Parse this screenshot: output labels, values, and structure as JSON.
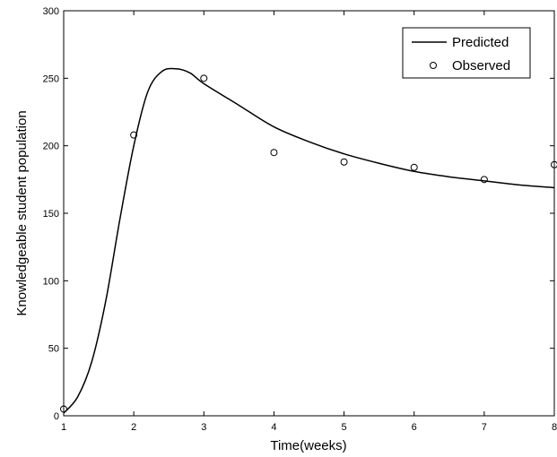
{
  "chart_data": {
    "type": "line",
    "title": "",
    "xlabel": "Time(weeks)",
    "ylabel": "Knowledgeable student population",
    "xlim": [
      1,
      8
    ],
    "ylim": [
      0,
      300
    ],
    "xticks": [
      1,
      2,
      3,
      4,
      5,
      6,
      7,
      8
    ],
    "yticks": [
      0,
      50,
      100,
      150,
      200,
      250,
      300
    ],
    "grid": false,
    "legend_position": "top-right",
    "series": [
      {
        "name": "Predicted",
        "style": "solid line",
        "color": "#000000",
        "x": [
          1.0,
          1.2,
          1.4,
          1.6,
          1.8,
          2.0,
          2.2,
          2.4,
          2.6,
          2.8,
          3.0,
          3.5,
          4.0,
          4.5,
          5.0,
          5.5,
          6.0,
          6.5,
          7.0,
          7.5,
          8.0
        ],
        "y": [
          2,
          14,
          40,
          85,
          145,
          200,
          240,
          255,
          257,
          254,
          246,
          230,
          214,
          203,
          194,
          187,
          181,
          177,
          174,
          171,
          169
        ]
      },
      {
        "name": "Observed",
        "style": "circle markers",
        "color": "#000000",
        "x": [
          1,
          2,
          3,
          4,
          5,
          6,
          7,
          8
        ],
        "y": [
          5,
          208,
          250,
          195,
          188,
          184,
          175,
          186
        ]
      }
    ]
  }
}
